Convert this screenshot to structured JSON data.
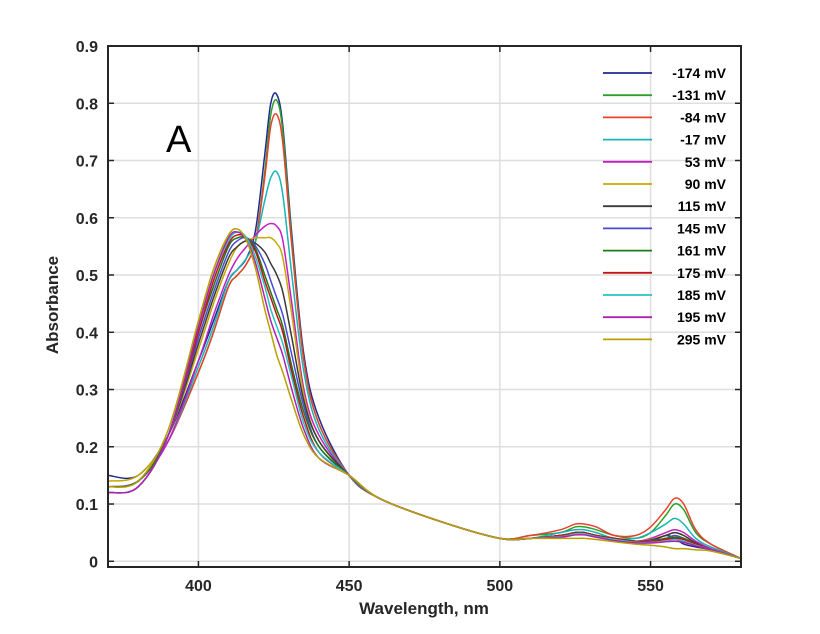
{
  "chart_data": {
    "type": "line",
    "panel_label": "A",
    "xlabel": "Wavelength, nm",
    "ylabel": "Absorbance",
    "xlim": [
      370,
      580
    ],
    "ylim": [
      -0.01,
      0.9
    ],
    "xticks": [
      400,
      450,
      500,
      550
    ],
    "xtick_labels": [
      "400",
      "450",
      "500",
      "550"
    ],
    "yticks": [
      0,
      0.1,
      0.2,
      0.3,
      0.4,
      0.5,
      0.6,
      0.7,
      0.8,
      0.9
    ],
    "ytick_labels": [
      "0",
      "0.1",
      "0.2",
      "0.3",
      "0.4",
      "0.5",
      "0.6",
      "0.7",
      "0.8",
      "0.9"
    ],
    "grid": true,
    "legend_position": "top-right",
    "x": [
      370,
      380,
      390,
      400,
      405,
      410,
      413,
      416,
      419,
      422,
      424,
      426,
      428,
      431,
      435,
      440,
      450,
      460,
      480,
      500,
      510,
      520,
      525,
      528,
      532,
      538,
      545,
      550,
      555,
      558,
      561,
      565,
      570,
      580
    ],
    "series": [
      {
        "name": "-174 mV",
        "color": "#1f2a8f",
        "values": [
          0.15,
          0.15,
          0.22,
          0.35,
          0.42,
          0.49,
          0.51,
          0.53,
          0.58,
          0.71,
          0.8,
          0.815,
          0.76,
          0.57,
          0.36,
          0.25,
          0.15,
          0.11,
          0.07,
          0.04,
          0.04,
          0.045,
          0.05,
          0.05,
          0.045,
          0.04,
          0.035,
          0.035,
          0.045,
          0.04,
          0.03,
          0.025,
          0.02,
          0.005
        ]
      },
      {
        "name": "-131 mV",
        "color": "#2ca02c",
        "values": [
          0.13,
          0.14,
          0.21,
          0.33,
          0.4,
          0.48,
          0.5,
          0.52,
          0.56,
          0.68,
          0.78,
          0.805,
          0.75,
          0.56,
          0.35,
          0.24,
          0.15,
          0.11,
          0.07,
          0.04,
          0.045,
          0.05,
          0.06,
          0.06,
          0.055,
          0.045,
          0.04,
          0.05,
          0.08,
          0.1,
          0.09,
          0.05,
          0.03,
          0.005
        ]
      },
      {
        "name": "-84 mV",
        "color": "#e8412c",
        "values": [
          0.13,
          0.14,
          0.21,
          0.33,
          0.4,
          0.48,
          0.5,
          0.52,
          0.56,
          0.67,
          0.76,
          0.78,
          0.73,
          0.55,
          0.35,
          0.24,
          0.15,
          0.11,
          0.07,
          0.04,
          0.045,
          0.055,
          0.065,
          0.065,
          0.06,
          0.045,
          0.045,
          0.06,
          0.09,
          0.11,
          0.1,
          0.055,
          0.03,
          0.005
        ]
      },
      {
        "name": "-17 mV",
        "color": "#19b5b5",
        "values": [
          0.13,
          0.14,
          0.21,
          0.34,
          0.41,
          0.49,
          0.51,
          0.53,
          0.56,
          0.63,
          0.67,
          0.68,
          0.64,
          0.5,
          0.33,
          0.23,
          0.15,
          0.11,
          0.07,
          0.04,
          0.04,
          0.05,
          0.055,
          0.055,
          0.05,
          0.04,
          0.04,
          0.05,
          0.065,
          0.075,
          0.065,
          0.04,
          0.025,
          0.005
        ]
      },
      {
        "name": "53 mV",
        "color": "#c21fc2",
        "values": [
          0.13,
          0.14,
          0.21,
          0.35,
          0.43,
          0.5,
          0.53,
          0.55,
          0.57,
          0.585,
          0.59,
          0.585,
          0.56,
          0.45,
          0.3,
          0.22,
          0.15,
          0.11,
          0.07,
          0.04,
          0.04,
          0.045,
          0.05,
          0.05,
          0.045,
          0.04,
          0.035,
          0.04,
          0.05,
          0.055,
          0.05,
          0.035,
          0.022,
          0.005
        ]
      },
      {
        "name": "90 mV",
        "color": "#c9a800",
        "values": [
          0.14,
          0.15,
          0.22,
          0.37,
          0.45,
          0.52,
          0.55,
          0.56,
          0.565,
          0.565,
          0.565,
          0.555,
          0.53,
          0.43,
          0.29,
          0.21,
          0.15,
          0.11,
          0.07,
          0.04,
          0.04,
          0.045,
          0.05,
          0.05,
          0.045,
          0.04,
          0.035,
          0.038,
          0.045,
          0.05,
          0.045,
          0.032,
          0.02,
          0.005
        ]
      },
      {
        "name": "115 mV",
        "color": "#3a3a3a",
        "values": [
          0.13,
          0.14,
          0.22,
          0.38,
          0.46,
          0.53,
          0.55,
          0.56,
          0.555,
          0.54,
          0.52,
          0.5,
          0.47,
          0.39,
          0.28,
          0.21,
          0.15,
          0.11,
          0.07,
          0.04,
          0.04,
          0.045,
          0.05,
          0.05,
          0.045,
          0.04,
          0.035,
          0.037,
          0.045,
          0.05,
          0.045,
          0.032,
          0.02,
          0.005
        ]
      },
      {
        "name": "145 mV",
        "color": "#4a4ad6",
        "values": [
          0.13,
          0.14,
          0.22,
          0.39,
          0.47,
          0.54,
          0.56,
          0.565,
          0.55,
          0.52,
          0.49,
          0.46,
          0.43,
          0.36,
          0.27,
          0.2,
          0.15,
          0.11,
          0.07,
          0.04,
          0.04,
          0.045,
          0.05,
          0.05,
          0.045,
          0.04,
          0.035,
          0.036,
          0.04,
          0.045,
          0.04,
          0.03,
          0.02,
          0.005
        ]
      },
      {
        "name": "161 mV",
        "color": "#1e7a1e",
        "values": [
          0.13,
          0.14,
          0.22,
          0.4,
          0.48,
          0.55,
          0.565,
          0.565,
          0.545,
          0.5,
          0.47,
          0.44,
          0.41,
          0.34,
          0.26,
          0.2,
          0.15,
          0.11,
          0.07,
          0.04,
          0.04,
          0.045,
          0.05,
          0.05,
          0.045,
          0.04,
          0.035,
          0.035,
          0.04,
          0.042,
          0.04,
          0.03,
          0.02,
          0.005
        ]
      },
      {
        "name": "175 mV",
        "color": "#c41414",
        "values": [
          0.12,
          0.13,
          0.22,
          0.4,
          0.49,
          0.555,
          0.57,
          0.565,
          0.54,
          0.49,
          0.46,
          0.43,
          0.4,
          0.33,
          0.25,
          0.19,
          0.15,
          0.11,
          0.07,
          0.04,
          0.04,
          0.045,
          0.05,
          0.05,
          0.045,
          0.04,
          0.035,
          0.035,
          0.038,
          0.04,
          0.038,
          0.03,
          0.02,
          0.005
        ]
      },
      {
        "name": "185 mV",
        "color": "#26c4c4",
        "values": [
          0.12,
          0.13,
          0.22,
          0.41,
          0.5,
          0.56,
          0.575,
          0.565,
          0.53,
          0.48,
          0.44,
          0.41,
          0.38,
          0.32,
          0.24,
          0.19,
          0.15,
          0.11,
          0.07,
          0.04,
          0.04,
          0.043,
          0.048,
          0.048,
          0.043,
          0.038,
          0.033,
          0.033,
          0.035,
          0.038,
          0.035,
          0.028,
          0.02,
          0.005
        ]
      },
      {
        "name": "195 mV",
        "color": "#b020b0",
        "values": [
          0.12,
          0.13,
          0.22,
          0.41,
          0.5,
          0.565,
          0.575,
          0.56,
          0.52,
          0.46,
          0.42,
          0.39,
          0.36,
          0.3,
          0.23,
          0.18,
          0.15,
          0.11,
          0.07,
          0.04,
          0.04,
          0.042,
          0.046,
          0.046,
          0.042,
          0.036,
          0.032,
          0.032,
          0.034,
          0.035,
          0.033,
          0.027,
          0.02,
          0.005
        ]
      },
      {
        "name": "295 mV",
        "color": "#b8a000",
        "values": [
          0.13,
          0.14,
          0.23,
          0.42,
          0.51,
          0.57,
          0.58,
          0.56,
          0.51,
          0.44,
          0.4,
          0.36,
          0.33,
          0.28,
          0.22,
          0.18,
          0.15,
          0.11,
          0.07,
          0.04,
          0.04,
          0.04,
          0.04,
          0.04,
          0.038,
          0.034,
          0.03,
          0.028,
          0.025,
          0.022,
          0.022,
          0.02,
          0.018,
          0.005
        ]
      }
    ]
  }
}
